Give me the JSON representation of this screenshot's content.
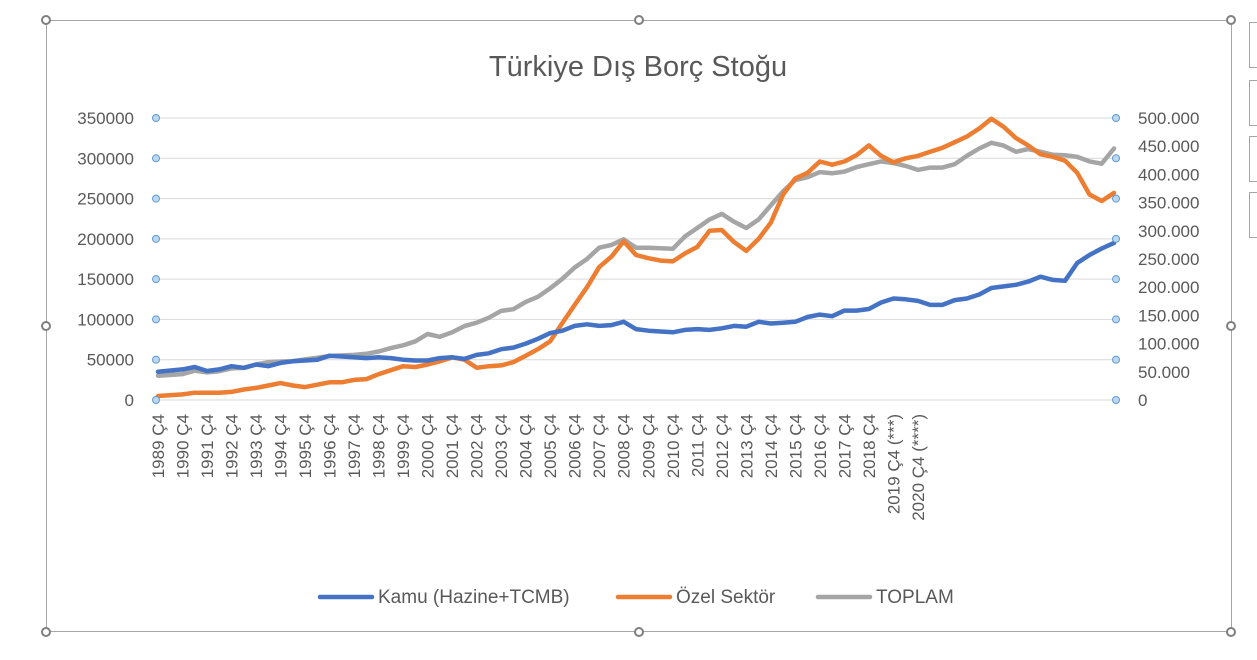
{
  "chart_data": {
    "type": "line",
    "title": "Türkiye Dış Borç Stoğu",
    "left_axis": {
      "min": 0,
      "max": 350000,
      "ticks": [
        "0",
        "50000",
        "100000",
        "150000",
        "200000",
        "250000",
        "300000",
        "350000"
      ]
    },
    "right_axis": {
      "min": 0,
      "max": 500000,
      "ticks": [
        "0",
        "50.000",
        "100.000",
        "150.000",
        "200.000",
        "250.000",
        "300.000",
        "350.000",
        "400.000",
        "450.000",
        "500.000"
      ]
    },
    "x_labels": [
      "1989 Ç4",
      "1990 Ç4",
      "1991 Ç4",
      "1992 Ç4",
      "1993 Ç4",
      "1994 Ç4",
      "1995 Ç4",
      "1996 Ç4",
      "1997 Ç4",
      "1998 Ç4",
      "1999 Ç4",
      "2000 Ç4",
      "2001 Ç4",
      "2002 Ç4",
      "2003 Ç4",
      "2004 Ç4",
      "2005 Ç4",
      "2006 Ç4",
      "2007 Ç4",
      "2008 Ç4",
      "2009 Ç4",
      "2010 Ç4",
      "2011 Ç4",
      "2012 Ç4",
      "2013 Ç4",
      "2014 Ç4",
      "2015 Ç4",
      "2016 Ç4",
      "2017 Ç4",
      "2018 Ç4",
      "2019 Ç4 (***)",
      "2020 Ç4 (****)"
    ],
    "x_label_years": [
      1989,
      1990,
      1991,
      1992,
      1993,
      1994,
      1995,
      1996,
      1997,
      1998,
      1999,
      2000,
      2001,
      2002,
      2003,
      2004,
      2005,
      2006,
      2007,
      2008,
      2009,
      2010,
      2011,
      2012,
      2013,
      2014,
      2015,
      2016,
      2017,
      2018,
      2019,
      2020
    ],
    "grid": true,
    "legend_position": "bottom",
    "series": [
      {
        "name": "Kamu (Hazine+TCMB)",
        "axis": "left",
        "color": "#4472c4",
        "points": [
          [
            1989,
            35000
          ],
          [
            1990,
            38000
          ],
          [
            1990.5,
            41000
          ],
          [
            1991,
            36000
          ],
          [
            1991.5,
            38000
          ],
          [
            1992,
            42000
          ],
          [
            1992.5,
            40000
          ],
          [
            1993,
            44000
          ],
          [
            1993.5,
            42000
          ],
          [
            1994,
            46000
          ],
          [
            1994.5,
            48000
          ],
          [
            1995,
            49000
          ],
          [
            1995.5,
            50000
          ],
          [
            1996,
            55000
          ],
          [
            1996.5,
            54000
          ],
          [
            1997,
            53000
          ],
          [
            1997.5,
            52000
          ],
          [
            1998,
            53000
          ],
          [
            1998.5,
            52000
          ],
          [
            1999,
            50000
          ],
          [
            1999.5,
            49000
          ],
          [
            2000,
            49000
          ],
          [
            2000.5,
            52000
          ],
          [
            2001,
            53000
          ],
          [
            2001.5,
            51000
          ],
          [
            2002,
            56000
          ],
          [
            2002.5,
            58000
          ],
          [
            2003,
            63000
          ],
          [
            2003.5,
            65000
          ],
          [
            2004,
            70000
          ],
          [
            2004.5,
            76000
          ],
          [
            2005,
            83000
          ],
          [
            2005.5,
            86000
          ],
          [
            2006,
            92000
          ],
          [
            2006.5,
            94000
          ],
          [
            2007,
            92000
          ],
          [
            2007.5,
            93000
          ],
          [
            2008,
            97000
          ],
          [
            2008.5,
            88000
          ],
          [
            2009,
            86000
          ],
          [
            2009.5,
            85000
          ],
          [
            2010,
            84000
          ],
          [
            2010.5,
            87000
          ],
          [
            2011,
            88000
          ],
          [
            2011.5,
            87000
          ],
          [
            2012,
            89000
          ],
          [
            2012.5,
            92000
          ],
          [
            2013,
            91000
          ],
          [
            2013.5,
            97000
          ],
          [
            2014,
            95000
          ],
          [
            2014.5,
            96000
          ],
          [
            2015,
            97000
          ],
          [
            2015.5,
            103000
          ],
          [
            2016,
            106000
          ],
          [
            2016.5,
            104000
          ],
          [
            2017,
            111000
          ],
          [
            2017.5,
            111000
          ],
          [
            2018,
            113000
          ],
          [
            2018.5,
            121000
          ],
          [
            2019,
            126000
          ],
          [
            2019.5,
            125000
          ],
          [
            2020,
            123000
          ],
          [
            2020.5,
            118000
          ],
          [
            2021,
            118000
          ],
          [
            2021.5,
            124000
          ],
          [
            2022,
            126000
          ],
          [
            2022.5,
            131000
          ],
          [
            2023,
            139000
          ],
          [
            2023.5,
            141000
          ],
          [
            2024,
            143000
          ],
          [
            2024.5,
            147000
          ],
          [
            2025,
            153000
          ],
          [
            2025.5,
            149000
          ],
          [
            2026,
            148000
          ],
          [
            2026.5,
            170000
          ],
          [
            2027,
            180000
          ],
          [
            2027.5,
            188000
          ],
          [
            2028,
            195000
          ]
        ]
      },
      {
        "name": "Özel Sektör",
        "axis": "left",
        "color": "#ed7d31",
        "points": [
          [
            1989,
            5000
          ],
          [
            1990,
            7000
          ],
          [
            1990.5,
            9000
          ],
          [
            1991,
            9000
          ],
          [
            1991.5,
            9000
          ],
          [
            1992,
            10000
          ],
          [
            1992.5,
            13000
          ],
          [
            1993,
            15000
          ],
          [
            1993.5,
            18000
          ],
          [
            1994,
            21000
          ],
          [
            1994.5,
            18000
          ],
          [
            1995,
            16000
          ],
          [
            1995.5,
            19000
          ],
          [
            1996,
            22000
          ],
          [
            1996.5,
            22000
          ],
          [
            1997,
            25000
          ],
          [
            1997.5,
            26000
          ],
          [
            1998,
            32000
          ],
          [
            1998.5,
            37000
          ],
          [
            1999,
            42000
          ],
          [
            1999.5,
            41000
          ],
          [
            2000,
            44000
          ],
          [
            2000.5,
            48000
          ],
          [
            2001,
            53000
          ],
          [
            2001.5,
            50000
          ],
          [
            2002,
            40000
          ],
          [
            2002.5,
            42000
          ],
          [
            2003,
            43000
          ],
          [
            2003.5,
            47000
          ],
          [
            2004,
            55000
          ],
          [
            2004.5,
            63000
          ],
          [
            2005,
            73000
          ],
          [
            2005.5,
            96000
          ],
          [
            2006,
            118000
          ],
          [
            2006.5,
            140000
          ],
          [
            2007,
            165000
          ],
          [
            2007.5,
            178000
          ],
          [
            2008,
            197000
          ],
          [
            2008.5,
            180000
          ],
          [
            2009,
            176000
          ],
          [
            2009.5,
            173000
          ],
          [
            2010,
            172000
          ],
          [
            2010.5,
            182000
          ],
          [
            2011,
            190000
          ],
          [
            2011.5,
            210000
          ],
          [
            2012,
            211000
          ],
          [
            2012.5,
            196000
          ],
          [
            2013,
            185000
          ],
          [
            2013.5,
            200000
          ],
          [
            2014,
            220000
          ],
          [
            2014.5,
            255000
          ],
          [
            2015,
            275000
          ],
          [
            2015.5,
            282000
          ],
          [
            2016,
            296000
          ],
          [
            2016.5,
            292000
          ],
          [
            2017,
            296000
          ],
          [
            2017.5,
            304000
          ],
          [
            2018,
            316000
          ],
          [
            2018.5,
            303000
          ],
          [
            2019,
            295000
          ],
          [
            2019.5,
            300000
          ],
          [
            2020,
            303000
          ],
          [
            2020.5,
            308000
          ],
          [
            2021,
            313000
          ],
          [
            2021.5,
            320000
          ],
          [
            2022,
            327000
          ],
          [
            2022.5,
            337000
          ],
          [
            2023,
            349000
          ],
          [
            2023.5,
            339000
          ],
          [
            2024,
            325000
          ],
          [
            2024.5,
            316000
          ],
          [
            2025,
            305000
          ],
          [
            2025.5,
            302000
          ],
          [
            2026,
            297000
          ],
          [
            2026.5,
            282000
          ],
          [
            2027,
            255000
          ],
          [
            2027.5,
            247000
          ],
          [
            2028,
            257000
          ]
        ]
      },
      {
        "name": "TOPLAM",
        "axis": "right",
        "color": "#a5a5a5",
        "points": [
          [
            1989,
            43000
          ],
          [
            1990,
            46000
          ],
          [
            1990.5,
            52000
          ],
          [
            1991,
            49000
          ],
          [
            1991.5,
            51000
          ],
          [
            1992,
            56000
          ],
          [
            1992.5,
            57000
          ],
          [
            1993,
            63000
          ],
          [
            1993.5,
            67000
          ],
          [
            1994,
            68000
          ],
          [
            1994.5,
            69000
          ],
          [
            1995,
            72000
          ],
          [
            1995.5,
            75000
          ],
          [
            1996,
            78000
          ],
          [
            1996.5,
            79000
          ],
          [
            1997,
            80000
          ],
          [
            1997.5,
            82000
          ],
          [
            1998,
            86000
          ],
          [
            1998.5,
            92000
          ],
          [
            1999,
            97000
          ],
          [
            1999.5,
            104000
          ],
          [
            2000,
            117000
          ],
          [
            2000.5,
            112000
          ],
          [
            2001,
            120000
          ],
          [
            2001.5,
            131000
          ],
          [
            2002,
            137000
          ],
          [
            2002.5,
            146000
          ],
          [
            2003,
            158000
          ],
          [
            2003.5,
            161000
          ],
          [
            2004,
            174000
          ],
          [
            2004.5,
            183000
          ],
          [
            2005,
            198000
          ],
          [
            2005.5,
            215000
          ],
          [
            2006,
            235000
          ],
          [
            2006.5,
            250000
          ],
          [
            2007,
            270000
          ],
          [
            2007.5,
            275000
          ],
          [
            2008,
            285000
          ],
          [
            2008.5,
            270000
          ],
          [
            2009,
            270000
          ],
          [
            2009.5,
            269000
          ],
          [
            2010,
            268000
          ],
          [
            2010.5,
            290000
          ],
          [
            2011,
            305000
          ],
          [
            2011.5,
            320000
          ],
          [
            2012,
            330000
          ],
          [
            2012.5,
            316000
          ],
          [
            2013,
            305000
          ],
          [
            2013.5,
            320000
          ],
          [
            2014,
            345000
          ],
          [
            2014.5,
            370000
          ],
          [
            2015,
            390000
          ],
          [
            2015.5,
            395000
          ],
          [
            2016,
            404000
          ],
          [
            2016.5,
            402000
          ],
          [
            2017,
            405000
          ],
          [
            2017.5,
            413000
          ],
          [
            2018,
            418000
          ],
          [
            2018.5,
            423000
          ],
          [
            2019,
            420000
          ],
          [
            2019.5,
            415000
          ],
          [
            2020,
            408000
          ],
          [
            2020.5,
            412000
          ],
          [
            2021,
            412000
          ],
          [
            2021.5,
            418000
          ],
          [
            2022,
            433000
          ],
          [
            2022.5,
            446000
          ],
          [
            2023,
            456000
          ],
          [
            2023.5,
            451000
          ],
          [
            2024,
            440000
          ],
          [
            2024.5,
            445000
          ],
          [
            2025,
            440000
          ],
          [
            2025.5,
            435000
          ],
          [
            2026,
            434000
          ],
          [
            2026.5,
            431000
          ],
          [
            2027,
            423000
          ],
          [
            2027.5,
            419000
          ],
          [
            2028,
            446000
          ]
        ]
      }
    ]
  }
}
